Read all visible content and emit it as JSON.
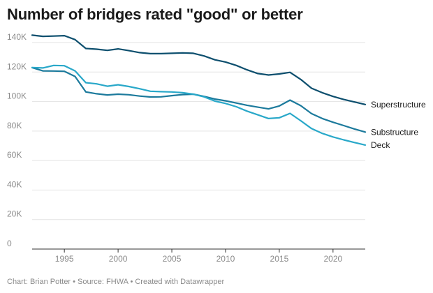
{
  "chart_data": {
    "type": "line",
    "title": "Number of bridges rated \"good\" or better",
    "xlabel": "",
    "ylabel": "",
    "xlim": [
      1992,
      2023
    ],
    "ylim": [
      0,
      140000
    ],
    "x_ticks": [
      1995,
      2000,
      2005,
      2010,
      2015,
      2020
    ],
    "y_ticks": [
      0,
      20000,
      40000,
      60000,
      80000,
      100000,
      120000,
      140000
    ],
    "y_tick_labels": [
      "0",
      "20K",
      "40K",
      "60K",
      "80K",
      "100K",
      "120K",
      "140K"
    ],
    "grid": true,
    "legend": "direct labels at line ends",
    "x": [
      1992,
      1993,
      1994,
      1995,
      1996,
      1997,
      1998,
      1999,
      2000,
      2001,
      2002,
      2003,
      2004,
      2005,
      2006,
      2007,
      2008,
      2009,
      2010,
      2011,
      2012,
      2013,
      2014,
      2015,
      2016,
      2017,
      2018,
      2019,
      2020,
      2021,
      2022,
      2023
    ],
    "series": [
      {
        "name": "Superstructure",
        "color": "#0d4f6e",
        "values": [
          145000,
          144200,
          144400,
          144700,
          142000,
          136000,
          135500,
          134700,
          135700,
          134500,
          133200,
          132500,
          132500,
          132700,
          133000,
          132700,
          130900,
          128300,
          126800,
          124500,
          121500,
          119000,
          118000,
          118700,
          119800,
          115000,
          109000,
          106000,
          103500,
          101400,
          99700,
          98000
        ]
      },
      {
        "name": "Substructure",
        "color": "#1c7a9c",
        "values": [
          123000,
          120800,
          120700,
          120500,
          117000,
          106500,
          105300,
          104500,
          105000,
          104600,
          103700,
          103100,
          103200,
          104000,
          104700,
          105000,
          103500,
          101700,
          100500,
          99000,
          97500,
          96200,
          95000,
          97000,
          101000,
          97200,
          91800,
          88500,
          86000,
          83700,
          81400,
          79300
        ]
      },
      {
        "name": "Deck",
        "color": "#29a8c9",
        "values": [
          123000,
          122800,
          124500,
          124300,
          120800,
          112800,
          112000,
          110400,
          111400,
          110200,
          108700,
          107000,
          106700,
          106500,
          106000,
          105000,
          103200,
          100300,
          98700,
          96500,
          93500,
          91000,
          88500,
          89000,
          92000,
          87000,
          81700,
          78400,
          76000,
          74000,
          72200,
          70500
        ]
      }
    ]
  },
  "footer": "Chart: Brian Potter • Source: FHWA • Created with Datawrapper"
}
